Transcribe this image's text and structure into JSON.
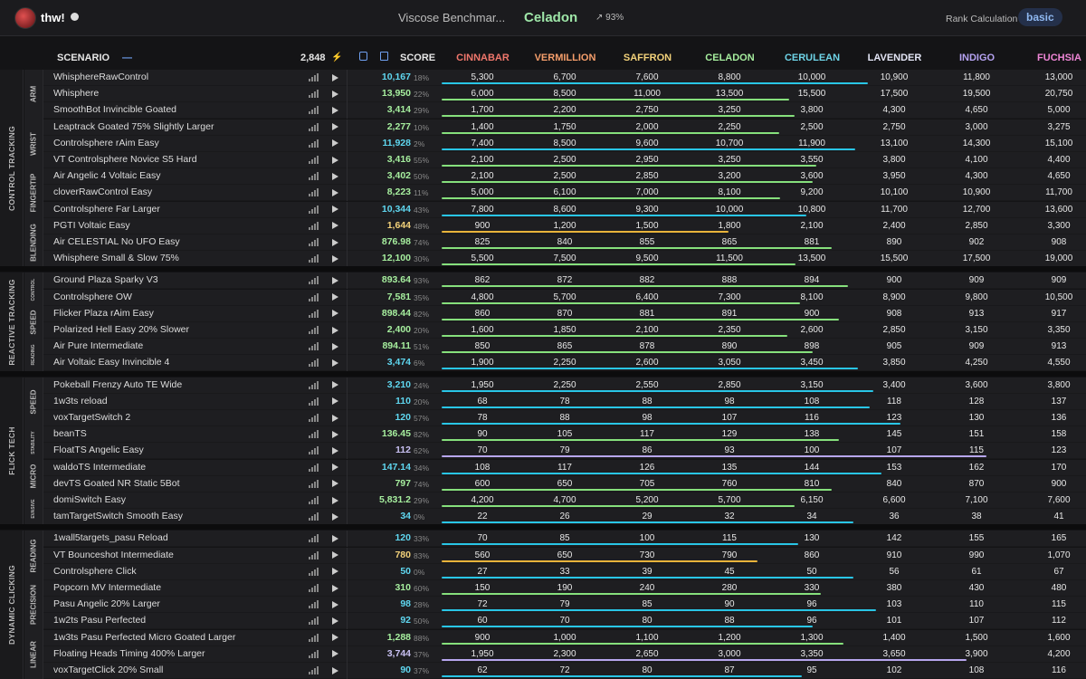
{
  "header": {
    "user": "thw!",
    "benchmark": "Viscose Benchmar...",
    "rank": "Celadon",
    "trend": "↗ 93%",
    "rank_calc_label": "Rank Calculation",
    "rank_calc_value": "basic"
  },
  "columns": {
    "scenario": "SCENARIO",
    "collapse": "—",
    "total": "2,848",
    "score": "SCORE"
  },
  "ranks": [
    {
      "name": "CINNABAR",
      "color": "#f0776c"
    },
    {
      "name": "VERMILLION",
      "color": "#f59e6b"
    },
    {
      "name": "SAFFRON",
      "color": "#f3d27a"
    },
    {
      "name": "CELADON",
      "color": "#a6ee9e"
    },
    {
      "name": "CERULEAN",
      "color": "#6fd5e8"
    },
    {
      "name": "LAVENDER",
      "color": "#e4e6f6"
    },
    {
      "name": "INDIGO",
      "color": "#b6a3f2"
    },
    {
      "name": "FUCHSIA",
      "color": "#ef86d6"
    }
  ],
  "sections": [
    {
      "label": "CONTROL TRACKING",
      "groups": [
        {
          "label": "ARM",
          "rows": [
            {
              "name": "WhisphereRawControl",
              "score": "10,167",
              "pct": "18%",
              "progress": 0.18,
              "color": "cyan",
              "th": [
                "5,300",
                "6,700",
                "7,600",
                "8,800",
                "10,000",
                "10,900",
                "11,800",
                "13,000"
              ]
            },
            {
              "name": "Whisphere",
              "score": "13,950",
              "pct": "22%",
              "progress": 0.22,
              "color": "green",
              "th": [
                "6,000",
                "8,500",
                "11,000",
                "13,500",
                "15,500",
                "17,500",
                "19,500",
                "20,750"
              ]
            },
            {
              "name": "SmoothBot Invincible Goated",
              "score": "3,414",
              "pct": "29%",
              "progress": 0.29,
              "color": "green",
              "th": [
                "1,700",
                "2,200",
                "2,750",
                "3,250",
                "3,800",
                "4,300",
                "4,650",
                "5,000"
              ]
            }
          ]
        },
        {
          "label": "WRIST",
          "rows": [
            {
              "name": "Leaptrack Goated 75% Slightly Larger",
              "score": "2,277",
              "pct": "10%",
              "progress": 0.1,
              "color": "green",
              "th": [
                "1,400",
                "1,750",
                "2,000",
                "2,250",
                "2,500",
                "2,750",
                "3,000",
                "3,275"
              ]
            },
            {
              "name": "Controlsphere rAim Easy",
              "score": "11,928",
              "pct": "2%",
              "progress": 0.02,
              "color": "cyan",
              "th": [
                "7,400",
                "8,500",
                "9,600",
                "10,700",
                "11,900",
                "13,100",
                "14,300",
                "15,100"
              ]
            },
            {
              "name": "VT Controlsphere Novice S5 Hard",
              "score": "3,416",
              "pct": "55%",
              "progress": 0.55,
              "color": "green",
              "th": [
                "2,100",
                "2,500",
                "2,950",
                "3,250",
                "3,550",
                "3,800",
                "4,100",
                "4,400"
              ]
            }
          ]
        },
        {
          "label": "FINGERTIP",
          "rows": [
            {
              "name": "Air Angelic 4 Voltaic Easy",
              "score": "3,402",
              "pct": "50%",
              "progress": 0.5,
              "color": "green",
              "th": [
                "2,100",
                "2,500",
                "2,850",
                "3,200",
                "3,600",
                "3,950",
                "4,300",
                "4,650"
              ]
            },
            {
              "name": "cloverRawControl Easy",
              "score": "8,223",
              "pct": "11%",
              "progress": 0.11,
              "color": "green",
              "th": [
                "5,000",
                "6,100",
                "7,000",
                "8,100",
                "9,200",
                "10,100",
                "10,900",
                "11,700"
              ]
            },
            {
              "name": "Controlsphere Far Larger",
              "score": "10,344",
              "pct": "43%",
              "progress": 0.43,
              "color": "cyan",
              "th": [
                "7,800",
                "8,600",
                "9,300",
                "10,000",
                "10,800",
                "11,700",
                "12,700",
                "13,600"
              ]
            }
          ]
        },
        {
          "label": "BLENDING",
          "rows": [
            {
              "name": "PGTI Voltaic Easy",
              "score": "1,644",
              "pct": "48%",
              "progress": 0.48,
              "color": "yellow",
              "th": [
                "900",
                "1,200",
                "1,500",
                "1,800",
                "2,100",
                "2,400",
                "2,850",
                "3,300"
              ]
            },
            {
              "name": "Air CELESTIAL No UFO Easy",
              "score": "876.98",
              "pct": "74%",
              "progress": 0.74,
              "color": "green",
              "th": [
                "825",
                "840",
                "855",
                "865",
                "881",
                "890",
                "902",
                "908"
              ]
            },
            {
              "name": "Whisphere Small & Slow 75%",
              "score": "12,100",
              "pct": "30%",
              "progress": 0.3,
              "color": "green",
              "th": [
                "5,500",
                "7,500",
                "9,500",
                "11,500",
                "13,500",
                "15,500",
                "17,500",
                "19,000"
              ]
            }
          ]
        }
      ]
    },
    {
      "label": "REACTIVE TRACKING",
      "groups": [
        {
          "label": "CONTROL",
          "rows": [
            {
              "name": "Ground Plaza Sparky V3",
              "score": "893.64",
              "pct": "93%",
              "progress": 0.93,
              "color": "green",
              "th": [
                "862",
                "872",
                "882",
                "888",
                "894",
                "900",
                "909",
                "909"
              ]
            },
            {
              "name": "Controlsphere OW",
              "score": "7,581",
              "pct": "35%",
              "progress": 0.35,
              "color": "green",
              "th": [
                "4,800",
                "5,700",
                "6,400",
                "7,300",
                "8,100",
                "8,900",
                "9,800",
                "10,500"
              ]
            }
          ]
        },
        {
          "label": "SPEED",
          "rows": [
            {
              "name": "Flicker Plaza rAim Easy",
              "score": "898.44",
              "pct": "82%",
              "progress": 0.82,
              "color": "green",
              "th": [
                "860",
                "870",
                "881",
                "891",
                "900",
                "908",
                "913",
                "917"
              ]
            },
            {
              "name": "Polarized Hell Easy 20% Slower",
              "score": "2,400",
              "pct": "20%",
              "progress": 0.2,
              "color": "green",
              "th": [
                "1,600",
                "1,850",
                "2,100",
                "2,350",
                "2,600",
                "2,850",
                "3,150",
                "3,350"
              ]
            }
          ]
        },
        {
          "label": "READING",
          "rows": [
            {
              "name": "Air Pure Intermediate",
              "score": "894.11",
              "pct": "51%",
              "progress": 0.51,
              "color": "green",
              "th": [
                "850",
                "865",
                "878",
                "890",
                "898",
                "905",
                "909",
                "913"
              ]
            },
            {
              "name": "Air Voltaic Easy Invincible 4",
              "score": "3,474",
              "pct": "6%",
              "progress": 0.06,
              "color": "cyan",
              "th": [
                "1,900",
                "2,250",
                "2,600",
                "3,050",
                "3,450",
                "3,850",
                "4,250",
                "4,550"
              ]
            }
          ]
        }
      ]
    },
    {
      "label": "FLICK TECH",
      "groups": [
        {
          "label": "SPEED",
          "rows": [
            {
              "name": "Pokeball Frenzy Auto TE Wide",
              "score": "3,210",
              "pct": "24%",
              "progress": 0.24,
              "color": "cyan",
              "th": [
                "1,950",
                "2,250",
                "2,550",
                "2,850",
                "3,150",
                "3,400",
                "3,600",
                "3,800"
              ]
            },
            {
              "name": "1w3ts reload",
              "score": "110",
              "pct": "20%",
              "progress": 0.2,
              "color": "cyan",
              "th": [
                "68",
                "78",
                "88",
                "98",
                "108",
                "118",
                "128",
                "137"
              ]
            },
            {
              "name": "voxTargetSwitch 2",
              "score": "120",
              "pct": "57%",
              "progress": 0.57,
              "color": "cyan",
              "th": [
                "78",
                "88",
                "98",
                "107",
                "116",
                "123",
                "130",
                "136"
              ]
            }
          ]
        },
        {
          "label": "STABILITY",
          "rows": [
            {
              "name": "beanTS",
              "score": "136.45",
              "pct": "82%",
              "progress": 0.82,
              "color": "green",
              "th": [
                "90",
                "105",
                "117",
                "129",
                "138",
                "145",
                "151",
                "158"
              ]
            },
            {
              "name": "FloatTS Angelic Easy",
              "score": "112",
              "pct": "62%",
              "progress": 0.62,
              "color": "lavender",
              "th": [
                "70",
                "79",
                "86",
                "93",
                "100",
                "107",
                "115",
                "123"
              ]
            }
          ]
        },
        {
          "label": "MICRO",
          "rows": [
            {
              "name": "waldoTS Intermediate",
              "score": "147.14",
              "pct": "34%",
              "progress": 0.34,
              "color": "cyan",
              "th": [
                "108",
                "117",
                "126",
                "135",
                "144",
                "153",
                "162",
                "170"
              ]
            },
            {
              "name": "devTS Goated NR Static 5Bot",
              "score": "797",
              "pct": "74%",
              "progress": 0.74,
              "color": "green",
              "th": [
                "600",
                "650",
                "705",
                "760",
                "810",
                "840",
                "870",
                "900"
              ]
            }
          ]
        },
        {
          "label": "EVASIVE",
          "rows": [
            {
              "name": "domiSwitch Easy",
              "score": "5,831.2",
              "pct": "29%",
              "progress": 0.29,
              "color": "green",
              "th": [
                "4,200",
                "4,700",
                "5,200",
                "5,700",
                "6,150",
                "6,600",
                "7,100",
                "7,600"
              ]
            },
            {
              "name": "tamTargetSwitch Smooth Easy",
              "score": "34",
              "pct": "0%",
              "progress": 0.0,
              "color": "cyan",
              "th": [
                "22",
                "26",
                "29",
                "32",
                "34",
                "36",
                "38",
                "41"
              ]
            }
          ]
        }
      ]
    },
    {
      "label": "DYNAMIC CLICKING",
      "groups": [
        {
          "label": "READING",
          "rows": [
            {
              "name": "1wall5targets_pasu Reload",
              "score": "120",
              "pct": "33%",
              "progress": 0.33,
              "color": "cyan",
              "th": [
                "70",
                "85",
                "100",
                "115",
                "130",
                "142",
                "155",
                "165"
              ]
            },
            {
              "name": "VT Bounceshot Intermediate",
              "score": "780",
              "pct": "83%",
              "progress": 0.83,
              "color": "yellow",
              "th": [
                "560",
                "650",
                "730",
                "790",
                "860",
                "910",
                "990",
                "1,070"
              ]
            },
            {
              "name": "Controlsphere Click",
              "score": "50",
              "pct": "0%",
              "progress": 0.0,
              "color": "cyan",
              "th": [
                "27",
                "33",
                "39",
                "45",
                "50",
                "56",
                "61",
                "67"
              ]
            }
          ]
        },
        {
          "label": "PRECISION",
          "rows": [
            {
              "name": "Popcorn MV Intermediate",
              "score": "310",
              "pct": "60%",
              "progress": 0.6,
              "color": "green",
              "th": [
                "150",
                "190",
                "240",
                "280",
                "330",
                "380",
                "430",
                "480"
              ]
            },
            {
              "name": "Pasu Angelic 20% Larger",
              "score": "98",
              "pct": "28%",
              "progress": 0.28,
              "color": "cyan",
              "th": [
                "72",
                "79",
                "85",
                "90",
                "96",
                "103",
                "110",
                "115"
              ]
            },
            {
              "name": "1w2ts Pasu Perfected",
              "score": "92",
              "pct": "50%",
              "progress": 0.5,
              "color": "cyan",
              "th": [
                "60",
                "70",
                "80",
                "88",
                "96",
                "101",
                "107",
                "112"
              ]
            }
          ]
        },
        {
          "label": "LINEAR",
          "rows": [
            {
              "name": "1w3ts Pasu Perfected Micro Goated Larger",
              "score": "1,288",
              "pct": "88%",
              "progress": 0.88,
              "color": "green",
              "th": [
                "900",
                "1,000",
                "1,100",
                "1,200",
                "1,300",
                "1,400",
                "1,500",
                "1,600"
              ]
            },
            {
              "name": "Floating Heads Timing 400% Larger",
              "score": "3,744",
              "pct": "37%",
              "progress": 0.37,
              "color": "lavender",
              "th": [
                "1,950",
                "2,300",
                "2,650",
                "3,000",
                "3,350",
                "3,650",
                "3,900",
                "4,200"
              ]
            },
            {
              "name": "voxTargetClick 20% Small",
              "score": "90",
              "pct": "37%",
              "progress": 0.37,
              "color": "cyan",
              "th": [
                "62",
                "72",
                "80",
                "87",
                "95",
                "102",
                "108",
                "116"
              ]
            }
          ]
        }
      ]
    }
  ],
  "bar_colors": {
    "cyan": "#29c6e6",
    "green": "#86e07c",
    "yellow": "#e8b33a",
    "lavender": "#b7a6ee"
  },
  "score_colors": {
    "cyan": "#5fd7f0",
    "green": "#a6ee9e",
    "yellow": "#f3d27a",
    "lavender": "#c9c1f3"
  }
}
